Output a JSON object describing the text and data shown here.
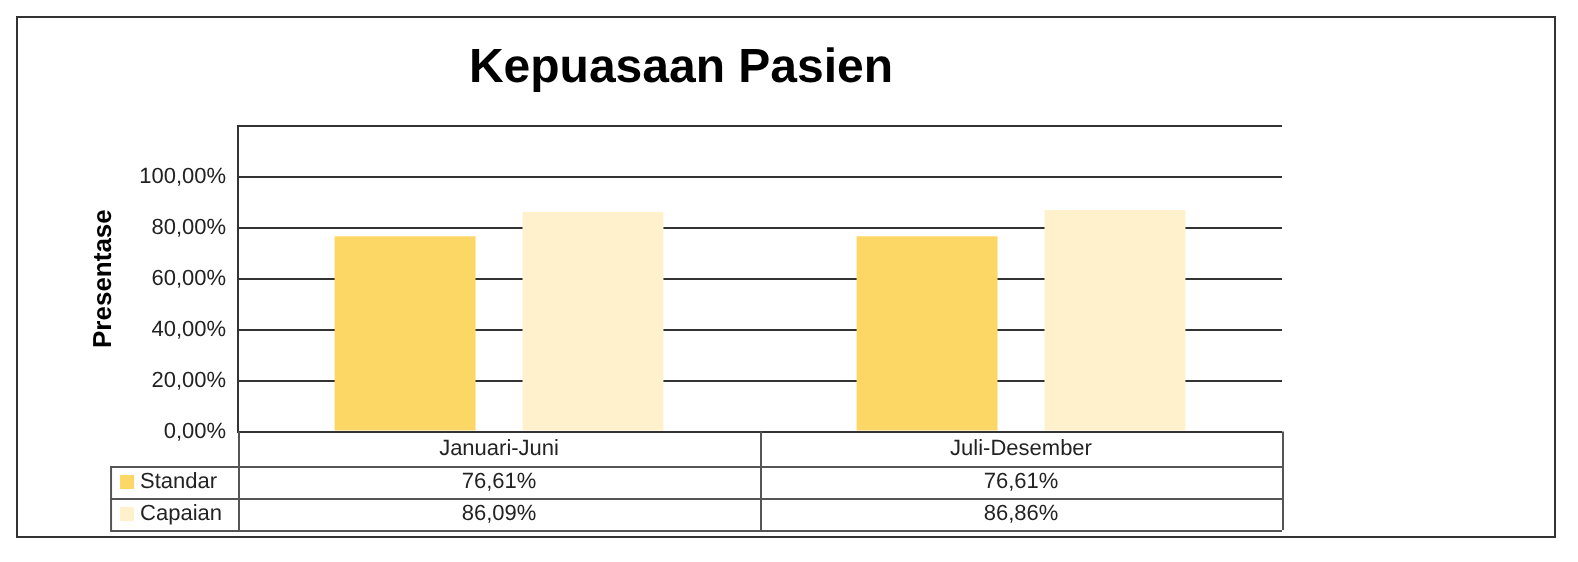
{
  "chart_data": {
    "type": "bar",
    "title": "Kepuasaan Pasien",
    "ylabel": "Presentase",
    "categories": [
      "Januari-Juni",
      "Juli-Desember"
    ],
    "series": [
      {
        "name": "Standar",
        "color": "#fdd766",
        "values": [
          76.61,
          76.61
        ],
        "value_labels": [
          "76,61%",
          "76,61%"
        ]
      },
      {
        "name": "Capaian",
        "color": "#fff1cb",
        "values": [
          86.09,
          86.86
        ],
        "value_labels": [
          "86,09%",
          "86,86%"
        ]
      }
    ],
    "ylim": [
      0,
      120
    ],
    "yticks": [
      {
        "value": 0,
        "label": "0,00%"
      },
      {
        "value": 20,
        "label": "20,00%"
      },
      {
        "value": 40,
        "label": "40,00%"
      },
      {
        "value": 60,
        "label": "60,00%"
      },
      {
        "value": 80,
        "label": "80,00%"
      },
      {
        "value": 100,
        "label": "100,00%"
      },
      {
        "value": 120,
        "label": null
      }
    ],
    "grid": "y",
    "legend": "bottom"
  }
}
